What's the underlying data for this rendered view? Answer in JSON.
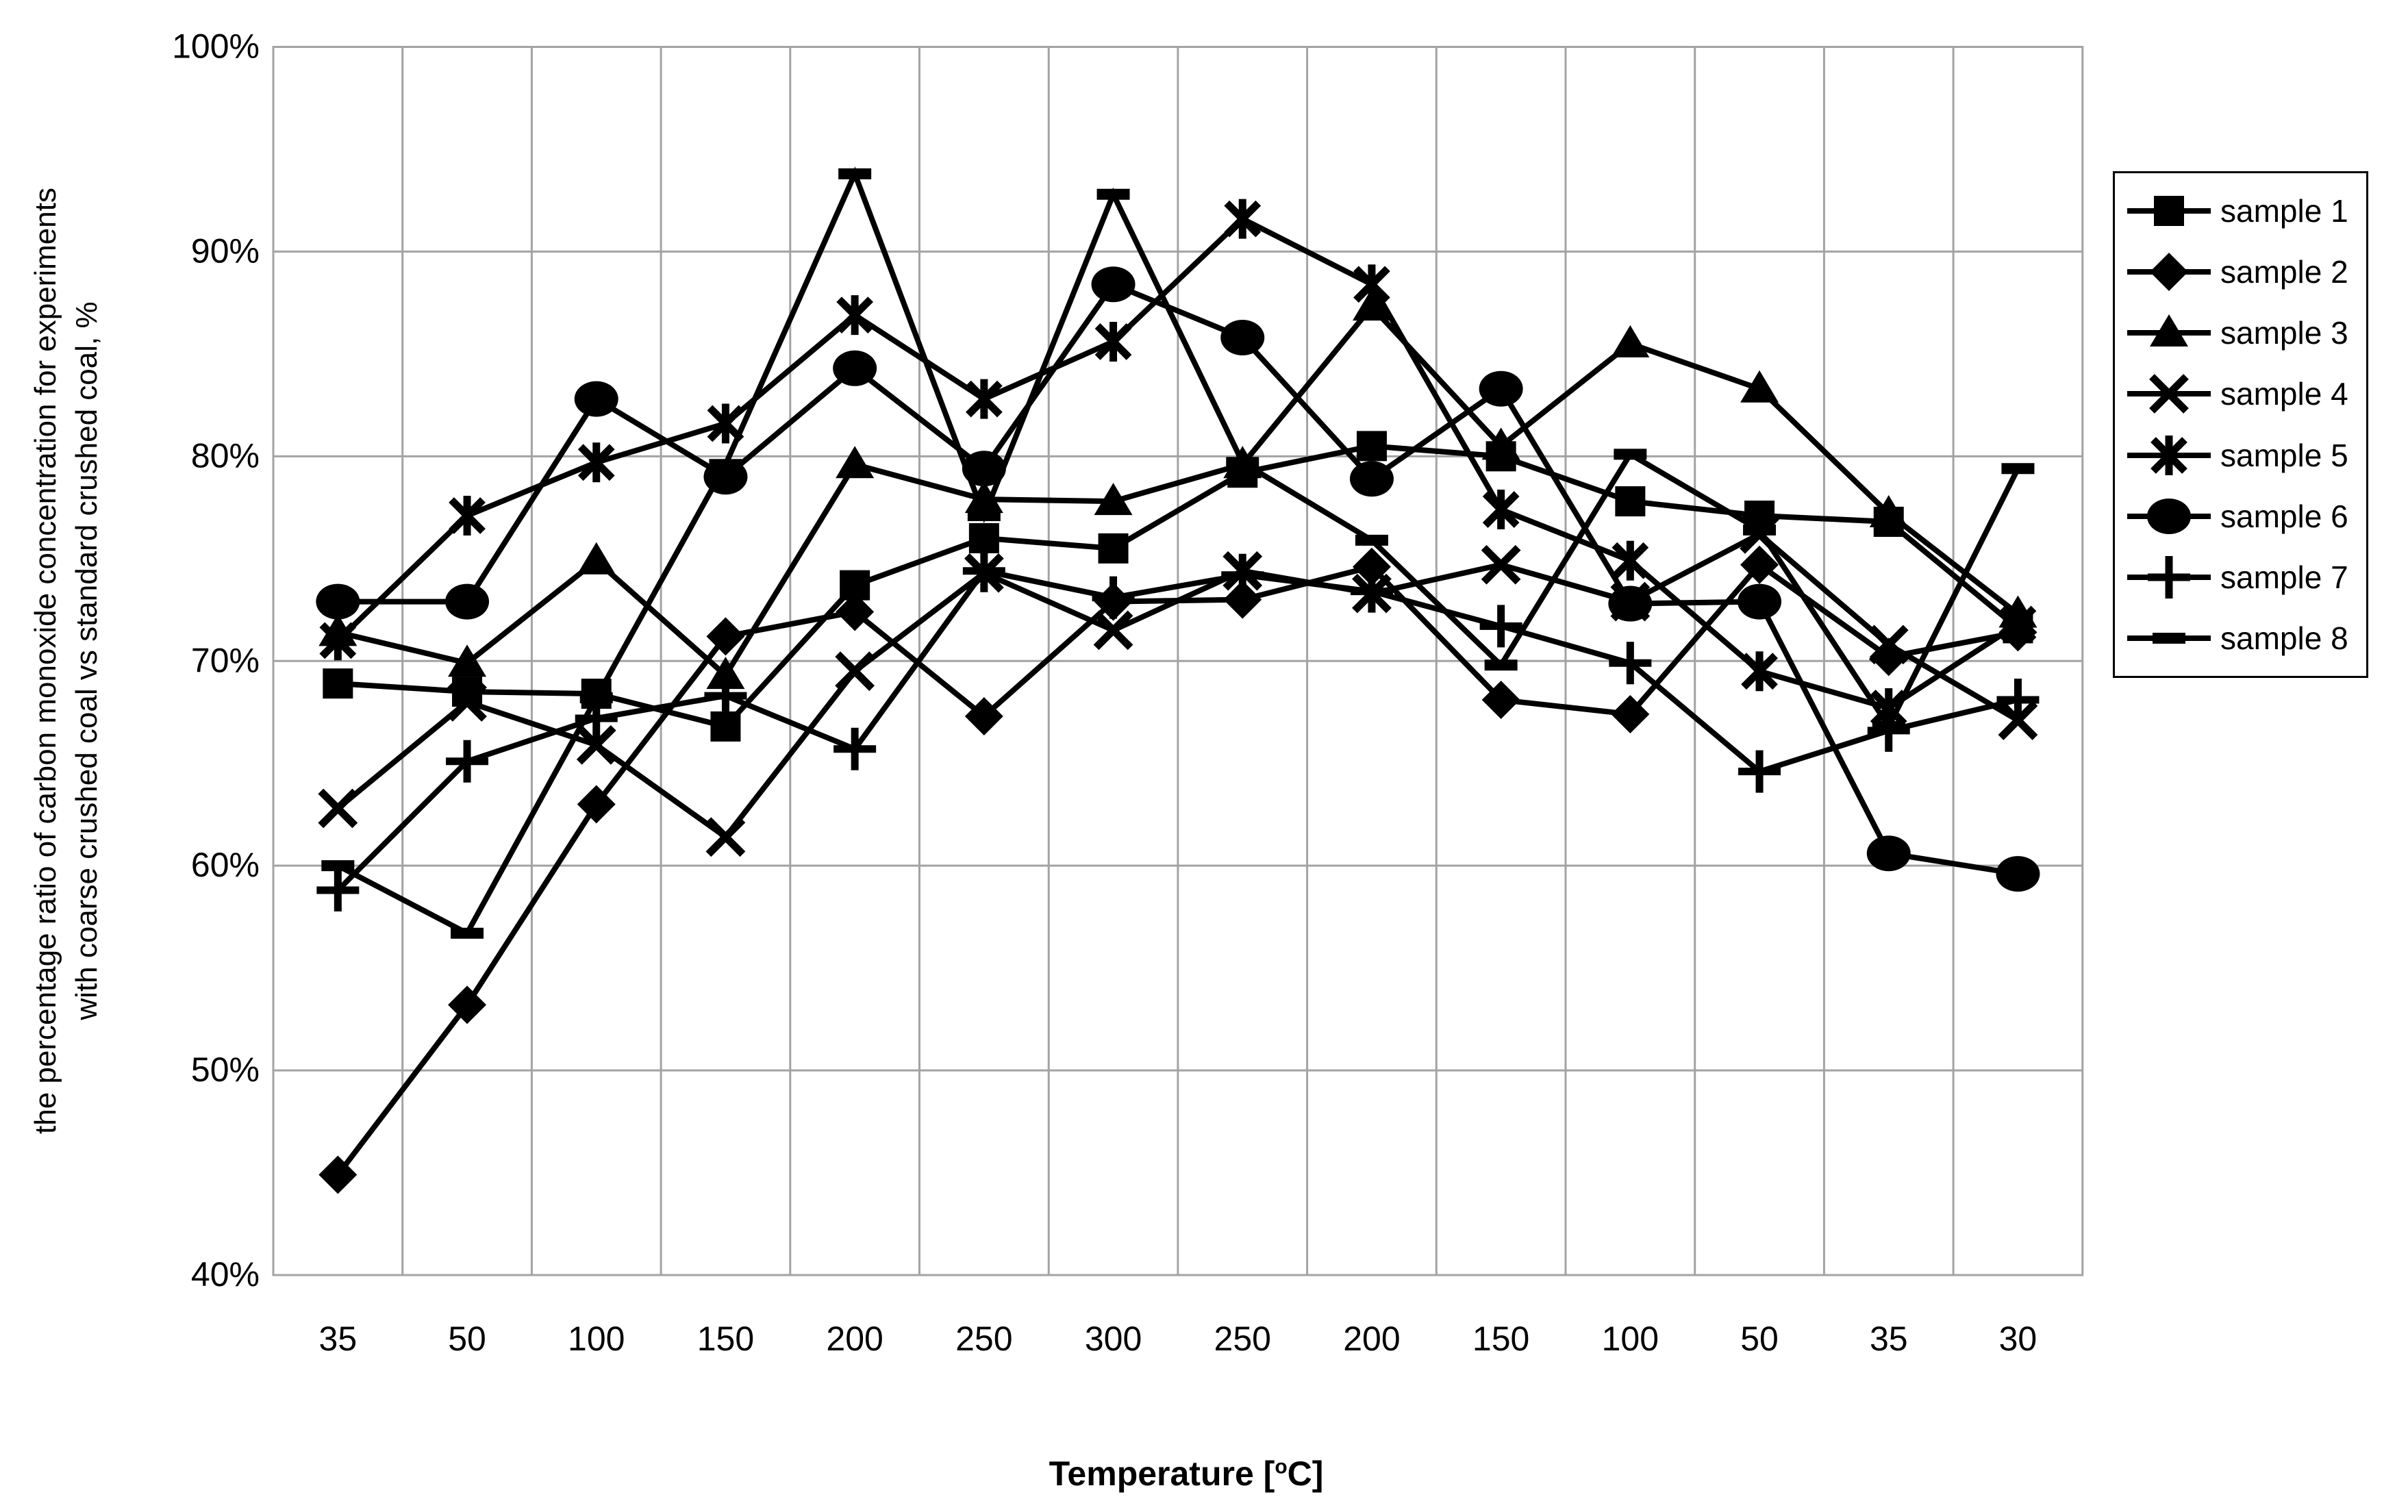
{
  "chart_data": {
    "type": "line",
    "title": "",
    "xlabel_prefix": "Temperature [",
    "xlabel_sup": "o",
    "xlabel_suffix": "C]",
    "ylabel_line1": "the percentage ratio of carbon monoxide concentration for experiments",
    "ylabel_line2": "with coarse crushed coal vs standard crushed coal, %",
    "categories": [
      "35",
      "50",
      "100",
      "150",
      "200",
      "250",
      "300",
      "250",
      "200",
      "150",
      "100",
      "50",
      "35",
      "30"
    ],
    "ylim": [
      40,
      100
    ],
    "ytick_step": 10,
    "ytick_suffix": "%",
    "grid": true,
    "legend_position": "right",
    "colors": {
      "series": "#000000",
      "grid": "#a3a3a3",
      "background": "#ffffff"
    },
    "series": [
      {
        "name": "sample 1",
        "marker": "square",
        "values": [
          68.9,
          68.5,
          68.4,
          66.8,
          73.7,
          76.0,
          75.5,
          79.2,
          80.5,
          80.0,
          77.8,
          77.1,
          76.8,
          71.6
        ]
      },
      {
        "name": "sample 2",
        "marker": "diamond",
        "values": [
          44.9,
          53.2,
          63.0,
          71.2,
          72.4,
          67.3,
          72.9,
          73.0,
          74.6,
          68.1,
          67.4,
          74.7,
          70.2,
          71.4
        ]
      },
      {
        "name": "sample 3",
        "marker": "triangle",
        "values": [
          71.4,
          69.9,
          74.9,
          69.3,
          79.6,
          77.9,
          77.8,
          79.6,
          87.3,
          80.5,
          85.5,
          83.3,
          77.2,
          72.3
        ]
      },
      {
        "name": "sample 4",
        "marker": "x",
        "values": [
          62.8,
          68.0,
          65.9,
          61.4,
          69.5,
          74.3,
          71.5,
          74.4,
          73.3,
          74.7,
          72.9,
          76.2,
          70.8,
          67.1
        ]
      },
      {
        "name": "sample 5",
        "marker": "star",
        "values": [
          71.0,
          77.1,
          79.7,
          81.6,
          86.9,
          82.8,
          85.6,
          91.6,
          88.4,
          77.4,
          74.9,
          69.5,
          67.7,
          71.8
        ]
      },
      {
        "name": "sample 6",
        "marker": "circle",
        "values": [
          72.9,
          72.9,
          82.8,
          79.0,
          84.3,
          79.4,
          88.4,
          85.8,
          78.9,
          83.3,
          72.8,
          72.9,
          60.6,
          59.6
        ]
      },
      {
        "name": "sample 7",
        "marker": "plus",
        "values": [
          58.8,
          65.1,
          67.2,
          68.3,
          65.7,
          74.4,
          73.1,
          74.2,
          73.4,
          71.7,
          69.9,
          64.6,
          66.6,
          68.1
        ]
      },
      {
        "name": "sample 8",
        "marker": "dash",
        "values": [
          60.0,
          56.7,
          68.2,
          79.6,
          93.8,
          77.1,
          92.8,
          79.7,
          75.9,
          69.8,
          80.1,
          76.4,
          66.8,
          79.4
        ]
      }
    ]
  }
}
